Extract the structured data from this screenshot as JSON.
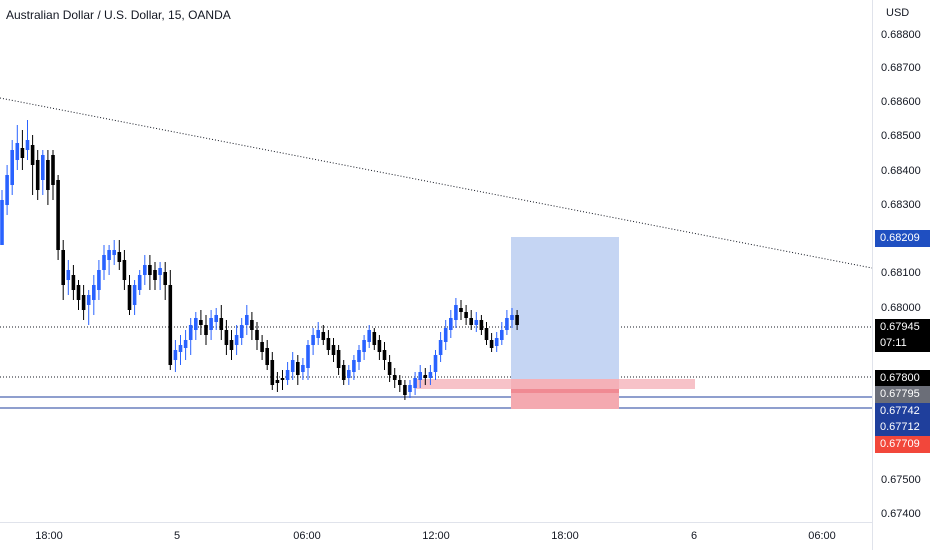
{
  "header": {
    "title": "Australian Dollar / U.S. Dollar, 15, OANDA"
  },
  "price_axis": {
    "currency": "USD",
    "ticks": [
      "0.68800",
      "0.68700",
      "0.68600",
      "0.68500",
      "0.68400",
      "0.68300",
      "0.68100",
      "0.68000",
      "0.67500",
      "0.67400"
    ]
  },
  "time_axis": {
    "ticks": [
      "18:00",
      "5",
      "06:00",
      "12:00",
      "18:00",
      "6",
      "06:00"
    ]
  },
  "badges": {
    "target": "0.68209",
    "last_price": "0.67945",
    "countdown": "07:11",
    "level": "0.67800",
    "entry": "0.67795",
    "line1": "0.67742",
    "line2": "0.67712",
    "stop": "0.67709"
  },
  "colors": {
    "up": "#2962ff",
    "down": "#000000",
    "target_zone": "#c5d5f3",
    "stop_zone": "#f4a9b0",
    "target_badge": "#1f4fc1",
    "stop_badge": "#f2473b",
    "dark_badge": "#000000",
    "gray_badge": "#6b6e78"
  }
}
